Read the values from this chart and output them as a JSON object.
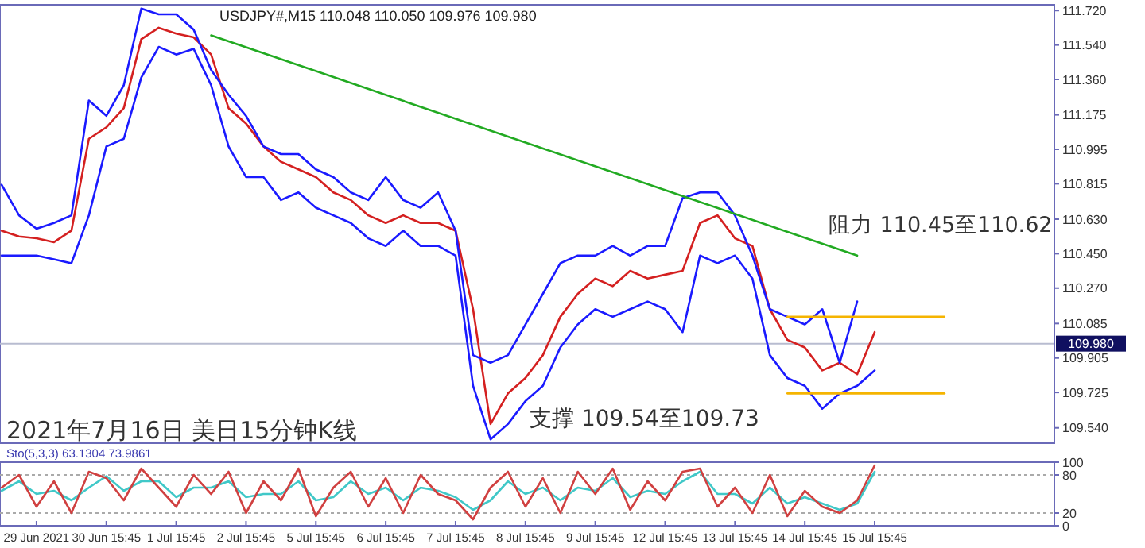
{
  "chart_data": [
    {
      "type": "line",
      "title": "USDJPY#,M15  110.048 110.050 109.976 109.980",
      "categories": [
        null,
        null,
        null,
        null,
        null,
        null,
        null,
        null,
        null,
        null,
        null,
        null,
        null,
        null,
        null,
        null,
        null,
        null,
        null,
        null,
        null,
        null,
        null,
        null,
        null,
        null,
        null,
        null,
        null,
        null,
        null,
        null,
        null,
        null,
        null,
        null,
        null,
        null,
        null,
        null,
        null,
        null,
        null,
        null,
        null,
        null,
        null,
        null,
        null,
        null,
        null,
        null,
        null,
        null,
        null,
        null,
        null,
        null,
        null,
        null
      ],
      "series": [
        {
          "color": "#d42020",
          "values": [
            110.57,
            110.54,
            110.53,
            110.51,
            110.57,
            111.05,
            111.11,
            111.21,
            111.57,
            111.63,
            111.6,
            111.58,
            111.49,
            111.21,
            111.13,
            111.01,
            110.93,
            110.89,
            110.85,
            110.77,
            110.73,
            110.65,
            110.61,
            110.65,
            110.61,
            110.61,
            110.57,
            110.16,
            109.56,
            109.72,
            109.8,
            109.92,
            110.12,
            110.24,
            110.32,
            110.28,
            110.36,
            110.32,
            110.34,
            110.36,
            110.61,
            110.65,
            110.53,
            110.49,
            110.16,
            110.0,
            109.96,
            109.84,
            109.88,
            109.82,
            110.04,
            null,
            null,
            null,
            null,
            null,
            null,
            null,
            null,
            null
          ]
        },
        {
          "color": "#1a1aff",
          "values": [
            110.81,
            110.65,
            110.58,
            110.61,
            110.65,
            111.25,
            111.17,
            111.33,
            111.73,
            111.7,
            111.7,
            111.62,
            111.41,
            111.28,
            111.17,
            111.01,
            110.97,
            110.97,
            110.89,
            110.85,
            110.77,
            110.73,
            110.85,
            110.73,
            110.69,
            110.77,
            110.57,
            109.92,
            109.88,
            109.92,
            110.08,
            110.24,
            110.4,
            110.44,
            110.44,
            110.49,
            110.44,
            110.49,
            110.49,
            110.74,
            110.77,
            110.77,
            110.65,
            110.44,
            110.16,
            110.12,
            110.08,
            110.16,
            109.88,
            110.2,
            null,
            null,
            null,
            null,
            null,
            null,
            null,
            null,
            null,
            null
          ]
        },
        {
          "color": "#1a1aff",
          "values": [
            110.44,
            110.44,
            110.44,
            110.42,
            110.4,
            110.65,
            111.01,
            111.05,
            111.37,
            111.53,
            111.49,
            111.52,
            111.33,
            111.01,
            110.85,
            110.85,
            110.73,
            110.77,
            110.69,
            110.65,
            110.61,
            110.53,
            110.49,
            110.57,
            110.49,
            110.49,
            110.44,
            109.76,
            109.48,
            109.56,
            109.68,
            109.76,
            109.96,
            110.08,
            110.16,
            110.12,
            110.16,
            110.2,
            110.16,
            110.04,
            110.44,
            110.4,
            110.44,
            110.32,
            109.92,
            109.8,
            109.76,
            109.64,
            109.72,
            109.76,
            109.84,
            null,
            null,
            null,
            null,
            null,
            null,
            null,
            null,
            null
          ]
        },
        {
          "color": "#22aa22",
          "values": [
            null,
            null,
            null,
            null,
            null,
            null,
            null,
            null,
            null,
            null,
            null,
            null,
            111.59,
            null,
            null,
            null,
            null,
            null,
            null,
            null,
            null,
            null,
            null,
            null,
            null,
            null,
            null,
            null,
            null,
            null,
            null,
            null,
            null,
            null,
            null,
            null,
            null,
            null,
            null,
            null,
            null,
            null,
            null,
            null,
            null,
            null,
            null,
            null,
            null,
            110.44,
            null,
            null,
            null,
            null,
            null,
            null,
            null,
            null,
            null,
            null
          ]
        },
        {
          "color": "#f5b400",
          "values": [
            null,
            null,
            null,
            null,
            null,
            null,
            null,
            null,
            null,
            null,
            null,
            null,
            null,
            null,
            null,
            null,
            null,
            null,
            null,
            null,
            null,
            null,
            null,
            null,
            null,
            null,
            null,
            null,
            null,
            null,
            null,
            null,
            null,
            null,
            null,
            null,
            null,
            null,
            null,
            null,
            null,
            null,
            null,
            null,
            null,
            110.12,
            null,
            null,
            null,
            null,
            null,
            null,
            null,
            null,
            110.12,
            null,
            null,
            null,
            null,
            null
          ]
        },
        {
          "color": "#f5b400",
          "values": [
            null,
            null,
            null,
            null,
            null,
            null,
            null,
            null,
            null,
            null,
            null,
            null,
            null,
            null,
            null,
            null,
            null,
            null,
            null,
            null,
            null,
            null,
            null,
            null,
            null,
            null,
            null,
            null,
            null,
            null,
            null,
            null,
            null,
            null,
            null,
            null,
            null,
            null,
            null,
            null,
            null,
            null,
            null,
            null,
            null,
            109.72,
            null,
            null,
            null,
            null,
            null,
            null,
            null,
            null,
            109.72,
            null,
            null,
            null,
            null,
            null
          ]
        }
      ],
      "ylim": [
        109.46,
        111.75
      ],
      "yticks": [
        {
          "value": 109.54,
          "label": "109.540"
        },
        {
          "value": 109.725,
          "label": "109.725"
        },
        {
          "value": 109.905,
          "label": "109.905"
        },
        {
          "value": 110.085,
          "label": "110.085"
        },
        {
          "value": 110.27,
          "label": "110.270"
        },
        {
          "value": 110.45,
          "label": "110.450"
        },
        {
          "value": 110.63,
          "label": "110.630"
        },
        {
          "value": 110.815,
          "label": "110.815"
        },
        {
          "value": 110.995,
          "label": "110.995"
        },
        {
          "value": 111.175,
          "label": "111.175"
        },
        {
          "value": 111.36,
          "label": "111.360"
        },
        {
          "value": 111.54,
          "label": "111.540"
        },
        {
          "value": 111.72,
          "label": "111.720"
        }
      ],
      "ref_lines": [
        {
          "axis": "y",
          "value": 109.98,
          "label": "109.980",
          "color": "#b8bcd0"
        }
      ],
      "annotations": [
        "阻力 110.45至110.62",
        "支撑 109.54至109.73",
        "2021年7月16日 美日15分钟K线"
      ],
      "tick_labels": "y"
    },
    {
      "type": "line",
      "title": "Sto(5,3,3) 63.1304 73.9861",
      "categories": [
        null,
        null,
        "29 Jun 2021",
        null,
        null,
        null,
        "30 Jun 15:45",
        null,
        null,
        null,
        "1 Jul 15:45",
        null,
        null,
        null,
        "2 Jul 15:45",
        null,
        null,
        null,
        "5 Jul 15:45",
        null,
        null,
        null,
        "6 Jul 15:45",
        null,
        null,
        null,
        "7 Jul 15:45",
        null,
        null,
        null,
        "8 Jul 15:45",
        null,
        null,
        null,
        "9 Jul 15:45",
        null,
        null,
        null,
        "12 Jul 15:45",
        null,
        null,
        null,
        "13 Jul 15:45",
        null,
        null,
        null,
        "14 Jul 15:45",
        null,
        null,
        null,
        "15 Jul 15:45",
        null,
        null,
        null,
        null,
        null,
        null,
        null,
        null,
        null
      ],
      "series": [
        {
          "color": "#40c8c8",
          "values": [
            55,
            70,
            50,
            55,
            40,
            60,
            78,
            55,
            70,
            70,
            45,
            60,
            60,
            70,
            45,
            50,
            50,
            70,
            40,
            45,
            70,
            50,
            60,
            40,
            60,
            55,
            45,
            25,
            40,
            70,
            50,
            60,
            40,
            60,
            55,
            75,
            45,
            55,
            50,
            70,
            85,
            50,
            50,
            35,
            60,
            35,
            45,
            35,
            25,
            35,
            85,
            null,
            null,
            null,
            null,
            null,
            null,
            null,
            null,
            null
          ]
        },
        {
          "color": "#d04040",
          "values": [
            60,
            80,
            30,
            70,
            20,
            85,
            75,
            40,
            90,
            60,
            30,
            80,
            50,
            85,
            20,
            70,
            40,
            90,
            15,
            60,
            85,
            30,
            75,
            20,
            80,
            50,
            40,
            10,
            60,
            85,
            30,
            75,
            20,
            85,
            50,
            90,
            25,
            70,
            40,
            85,
            90,
            30,
            60,
            20,
            80,
            15,
            55,
            30,
            20,
            40,
            95,
            null,
            null,
            null,
            null,
            null,
            null,
            null,
            null,
            null
          ]
        }
      ],
      "ylim": [
        0,
        100
      ],
      "yticks": [
        0,
        20,
        80,
        100
      ],
      "ref_lines": [
        {
          "axis": "y",
          "value": 20,
          "label": null,
          "color": "#aaaaaa",
          "line_style": "dotted"
        },
        {
          "axis": "y",
          "value": 80,
          "label": null,
          "color": "#aaaaaa",
          "line_style": "dotted"
        }
      ]
    }
  ]
}
